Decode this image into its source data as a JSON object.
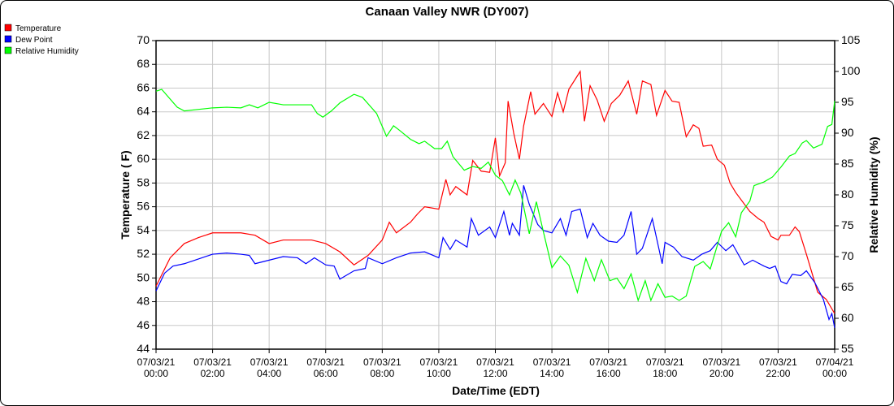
{
  "chart_data": {
    "type": "line",
    "title": "Canaan Valley NWR (DY007)",
    "xlabel": "Date/Time (EDT)",
    "ylabel": "Temperature ( F)",
    "y2label": "Relative Humidity (%)",
    "ylim": [
      44,
      70
    ],
    "y2lim": [
      55,
      105
    ],
    "yticks": [
      "44",
      "46",
      "48",
      "50",
      "52",
      "54",
      "56",
      "58",
      "60",
      "62",
      "64",
      "66",
      "68",
      "70"
    ],
    "y2ticks": [
      "55",
      "60",
      "65",
      "70",
      "75",
      "80",
      "85",
      "90",
      "95",
      "100",
      "105"
    ],
    "xticks": [
      [
        "07/03/21",
        "00:00"
      ],
      [
        "07/03/21",
        "02:00"
      ],
      [
        "07/03/21",
        "04:00"
      ],
      [
        "07/03/21",
        "06:00"
      ],
      [
        "07/03/21",
        "08:00"
      ],
      [
        "07/03/21",
        "10:00"
      ],
      [
        "07/03/21",
        "12:00"
      ],
      [
        "07/03/21",
        "14:00"
      ],
      [
        "07/03/21",
        "16:00"
      ],
      [
        "07/03/21",
        "18:00"
      ],
      [
        "07/03/21",
        "20:00"
      ],
      [
        "07/03/21",
        "22:00"
      ],
      [
        "07/04/21",
        "00:00"
      ]
    ],
    "xlim_hours": [
      0,
      24
    ],
    "grid": true,
    "legend_position": "top-left",
    "series": [
      {
        "name": "Temperature",
        "color": "#ff0000",
        "axis": "left",
        "points": [
          [
            0,
            49.3
          ],
          [
            0.5,
            51.7
          ],
          [
            1,
            52.9
          ],
          [
            1.5,
            53.4
          ],
          [
            2,
            53.8
          ],
          [
            2.5,
            53.8
          ],
          [
            3,
            53.8
          ],
          [
            3.5,
            53.6
          ],
          [
            4,
            52.9
          ],
          [
            4.5,
            53.2
          ],
          [
            5,
            53.2
          ],
          [
            5.5,
            53.2
          ],
          [
            6,
            52.9
          ],
          [
            6.5,
            52.2
          ],
          [
            7,
            51.1
          ],
          [
            7.5,
            51.9
          ],
          [
            8,
            53.2
          ],
          [
            8.25,
            54.7
          ],
          [
            8.5,
            53.8
          ],
          [
            9,
            54.7
          ],
          [
            9.25,
            55.4
          ],
          [
            9.5,
            56
          ],
          [
            10,
            55.8
          ],
          [
            10.25,
            58.3
          ],
          [
            10.4,
            57
          ],
          [
            10.6,
            57.7
          ],
          [
            11,
            57
          ],
          [
            11.2,
            59.9
          ],
          [
            11.5,
            59
          ],
          [
            11.8,
            58.9
          ],
          [
            12,
            61.8
          ],
          [
            12.15,
            58.6
          ],
          [
            12.35,
            59.7
          ],
          [
            12.45,
            64.9
          ],
          [
            12.65,
            62.2
          ],
          [
            12.85,
            60
          ],
          [
            13,
            62.8
          ],
          [
            13.25,
            65.7
          ],
          [
            13.4,
            63.8
          ],
          [
            13.7,
            64.7
          ],
          [
            14,
            63.6
          ],
          [
            14.2,
            65.6
          ],
          [
            14.4,
            64
          ],
          [
            14.6,
            65.9
          ],
          [
            15,
            67.4
          ],
          [
            15.15,
            63.2
          ],
          [
            15.35,
            66.2
          ],
          [
            15.6,
            65
          ],
          [
            15.85,
            63.2
          ],
          [
            16.1,
            64.7
          ],
          [
            16.4,
            65.4
          ],
          [
            16.7,
            66.6
          ],
          [
            17,
            63.8
          ],
          [
            17.2,
            66.6
          ],
          [
            17.5,
            66.3
          ],
          [
            17.7,
            63.7
          ],
          [
            18,
            65.8
          ],
          [
            18.25,
            64.9
          ],
          [
            18.5,
            64.8
          ],
          [
            18.75,
            61.9
          ],
          [
            19,
            62.9
          ],
          [
            19.2,
            62.6
          ],
          [
            19.35,
            61.1
          ],
          [
            19.65,
            61.2
          ],
          [
            19.85,
            60
          ],
          [
            20.1,
            59.5
          ],
          [
            20.3,
            58
          ],
          [
            20.5,
            57.2
          ],
          [
            21,
            55.6
          ],
          [
            21.3,
            55
          ],
          [
            21.5,
            54.7
          ],
          [
            21.75,
            53.5
          ],
          [
            22,
            53.2
          ],
          [
            22.1,
            53.6
          ],
          [
            22.4,
            53.6
          ],
          [
            22.6,
            54.3
          ],
          [
            22.75,
            53.9
          ],
          [
            23,
            52
          ],
          [
            23.4,
            48.8
          ],
          [
            23.7,
            48.2
          ],
          [
            24,
            47
          ]
        ]
      },
      {
        "name": "Dew Point",
        "color": "#0000ff",
        "axis": "left",
        "points": [
          [
            0,
            48.9
          ],
          [
            0.3,
            50.4
          ],
          [
            0.6,
            51
          ],
          [
            1,
            51.2
          ],
          [
            1.5,
            51.6
          ],
          [
            2,
            52
          ],
          [
            2.5,
            52.1
          ],
          [
            3,
            52
          ],
          [
            3.3,
            51.9
          ],
          [
            3.5,
            51.2
          ],
          [
            4,
            51.5
          ],
          [
            4.5,
            51.8
          ],
          [
            5,
            51.7
          ],
          [
            5.3,
            51.2
          ],
          [
            5.6,
            51.7
          ],
          [
            6,
            51.1
          ],
          [
            6.3,
            51
          ],
          [
            6.5,
            49.9
          ],
          [
            7,
            50.6
          ],
          [
            7.4,
            50.8
          ],
          [
            7.5,
            51.7
          ],
          [
            8,
            51.2
          ],
          [
            8.5,
            51.7
          ],
          [
            9,
            52.1
          ],
          [
            9.5,
            52.2
          ],
          [
            10,
            51.7
          ],
          [
            10.15,
            53.4
          ],
          [
            10.4,
            52.4
          ],
          [
            10.6,
            53.2
          ],
          [
            11,
            52.6
          ],
          [
            11.15,
            55
          ],
          [
            11.4,
            53.6
          ],
          [
            11.8,
            54.3
          ],
          [
            12,
            53.4
          ],
          [
            12.3,
            55.6
          ],
          [
            12.5,
            53.6
          ],
          [
            12.6,
            54.6
          ],
          [
            12.85,
            53.6
          ],
          [
            13,
            57.8
          ],
          [
            13.2,
            56.2
          ],
          [
            13.5,
            54.5
          ],
          [
            13.7,
            54
          ],
          [
            14,
            53.8
          ],
          [
            14.3,
            55
          ],
          [
            14.5,
            53.6
          ],
          [
            14.7,
            55.6
          ],
          [
            15,
            55.8
          ],
          [
            15.25,
            53.4
          ],
          [
            15.45,
            54.6
          ],
          [
            15.7,
            53.6
          ],
          [
            16,
            53.1
          ],
          [
            16.3,
            53
          ],
          [
            16.55,
            53.6
          ],
          [
            16.8,
            55.6
          ],
          [
            17,
            52
          ],
          [
            17.2,
            52.5
          ],
          [
            17.55,
            55
          ],
          [
            17.9,
            51.2
          ],
          [
            18,
            53
          ],
          [
            18.3,
            52.6
          ],
          [
            18.6,
            51.8
          ],
          [
            19,
            51.5
          ],
          [
            19.3,
            52
          ],
          [
            19.6,
            52.3
          ],
          [
            19.85,
            53
          ],
          [
            20.15,
            52.3
          ],
          [
            20.4,
            52.8
          ],
          [
            20.8,
            51.1
          ],
          [
            21.1,
            51.5
          ],
          [
            21.5,
            51
          ],
          [
            21.7,
            50.8
          ],
          [
            21.9,
            51
          ],
          [
            22.1,
            49.7
          ],
          [
            22.3,
            49.5
          ],
          [
            22.5,
            50.3
          ],
          [
            22.8,
            50.2
          ],
          [
            23,
            50.6
          ],
          [
            23.3,
            49.6
          ],
          [
            23.6,
            48.2
          ],
          [
            23.8,
            46.5
          ],
          [
            23.9,
            47
          ],
          [
            24,
            45.8
          ]
        ]
      },
      {
        "name": "Relative Humidity",
        "color": "#00ff00",
        "axis": "right",
        "points": [
          [
            0,
            96.8
          ],
          [
            0.2,
            97.1
          ],
          [
            0.75,
            94.2
          ],
          [
            1,
            93.6
          ],
          [
            2,
            94.1
          ],
          [
            2.5,
            94.2
          ],
          [
            3,
            94.1
          ],
          [
            3.3,
            94.6
          ],
          [
            3.6,
            94.1
          ],
          [
            4,
            95
          ],
          [
            4.5,
            94.6
          ],
          [
            5,
            94.6
          ],
          [
            5.5,
            94.6
          ],
          [
            5.7,
            93.2
          ],
          [
            5.9,
            92.6
          ],
          [
            6.2,
            93.6
          ],
          [
            6.5,
            94.9
          ],
          [
            7,
            96.3
          ],
          [
            7.3,
            95.8
          ],
          [
            7.8,
            93.2
          ],
          [
            8.15,
            89.5
          ],
          [
            8.4,
            91.2
          ],
          [
            8.6,
            90.5
          ],
          [
            9,
            89
          ],
          [
            9.3,
            88.3
          ],
          [
            9.5,
            88.7
          ],
          [
            9.85,
            87.5
          ],
          [
            10.1,
            87.5
          ],
          [
            10.3,
            88.7
          ],
          [
            10.5,
            86.2
          ],
          [
            10.9,
            84
          ],
          [
            11.2,
            84.6
          ],
          [
            11.5,
            84.3
          ],
          [
            11.75,
            85.3
          ],
          [
            12,
            83.2
          ],
          [
            12.25,
            82.3
          ],
          [
            12.5,
            80
          ],
          [
            12.7,
            82.4
          ],
          [
            12.9,
            80.3
          ],
          [
            13.2,
            73.7
          ],
          [
            13.45,
            78.9
          ],
          [
            13.7,
            74
          ],
          [
            14,
            68.2
          ],
          [
            14.3,
            70.1
          ],
          [
            14.6,
            68.6
          ],
          [
            14.9,
            64.2
          ],
          [
            15.2,
            69.7
          ],
          [
            15.5,
            66.1
          ],
          [
            15.75,
            69.5
          ],
          [
            16.05,
            66.1
          ],
          [
            16.3,
            66.5
          ],
          [
            16.55,
            64.8
          ],
          [
            16.8,
            67.2
          ],
          [
            17.05,
            62.9
          ],
          [
            17.3,
            66.1
          ],
          [
            17.5,
            62.9
          ],
          [
            17.75,
            65.6
          ],
          [
            18,
            63.4
          ],
          [
            18.25,
            63.6
          ],
          [
            18.5,
            62.9
          ],
          [
            18.75,
            63.6
          ],
          [
            19.05,
            68.4
          ],
          [
            19.35,
            69.2
          ],
          [
            19.6,
            68
          ],
          [
            20,
            74.1
          ],
          [
            20.25,
            75.5
          ],
          [
            20.5,
            73.2
          ],
          [
            20.7,
            77.1
          ],
          [
            21,
            79
          ],
          [
            21.15,
            81.5
          ],
          [
            21.5,
            82.1
          ],
          [
            21.8,
            82.9
          ],
          [
            22.1,
            84.5
          ],
          [
            22.4,
            86.3
          ],
          [
            22.6,
            86.7
          ],
          [
            22.85,
            88.4
          ],
          [
            23,
            88.8
          ],
          [
            23.25,
            87.6
          ],
          [
            23.55,
            88.2
          ],
          [
            23.75,
            91.1
          ],
          [
            23.9,
            91.4
          ],
          [
            24,
            95.2
          ]
        ]
      }
    ]
  }
}
